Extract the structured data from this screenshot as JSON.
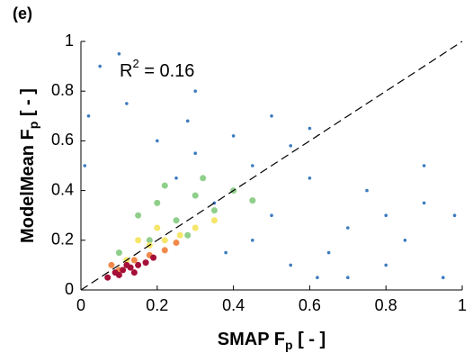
{
  "chart_data": {
    "type": "scatter",
    "panel_label": "(e)",
    "annotation": {
      "base": "R",
      "sup": "2",
      "rest": " = 0.16"
    },
    "x_label": {
      "base": "SMAP F",
      "sub": "p",
      "rest": " [ - ]"
    },
    "y_label": {
      "base": "ModelMean F",
      "sub": "p",
      "rest": " [ - ]"
    },
    "xlim": [
      0,
      1
    ],
    "ylim": [
      0,
      1
    ],
    "xticks": [
      0,
      0.2,
      0.4,
      0.6,
      0.8,
      1
    ],
    "yticks": [
      0,
      0.2,
      0.4,
      0.6,
      0.8,
      1
    ],
    "series": [
      {
        "color": "#3b7bbf",
        "x": [
          0.05,
          0.12,
          0.2,
          0.3,
          0.45,
          0.6,
          0.75,
          0.9,
          0.98,
          0.15,
          0.35,
          0.5,
          0.7,
          0.85,
          0.25,
          0.4,
          0.55,
          0.65,
          0.8,
          0.95,
          0.1,
          0.3,
          0.5,
          0.02,
          0.01,
          0.6,
          0.45,
          0.2,
          0.7,
          0.9,
          0.38,
          0.55,
          0.28,
          0.8,
          0.62
        ],
        "values": [
          0.9,
          0.75,
          0.6,
          0.55,
          0.5,
          0.45,
          0.4,
          0.35,
          0.3,
          0.3,
          0.35,
          0.3,
          0.25,
          0.2,
          0.45,
          0.62,
          0.58,
          0.15,
          0.1,
          0.05,
          0.95,
          0.8,
          0.7,
          0.7,
          0.5,
          0.65,
          0.2,
          0.25,
          0.05,
          0.5,
          0.15,
          0.1,
          0.68,
          0.3,
          0.05
        ]
      },
      {
        "color": "#8fcf8a",
        "x": [
          0.15,
          0.2,
          0.25,
          0.3,
          0.35,
          0.4,
          0.28,
          0.18,
          0.1,
          0.22,
          0.32,
          0.45
        ],
        "values": [
          0.3,
          0.35,
          0.28,
          0.38,
          0.32,
          0.4,
          0.22,
          0.2,
          0.15,
          0.42,
          0.45,
          0.36
        ]
      },
      {
        "color": "#f5e66a",
        "x": [
          0.12,
          0.18,
          0.22,
          0.26,
          0.3,
          0.15,
          0.2,
          0.35
        ],
        "values": [
          0.12,
          0.18,
          0.2,
          0.22,
          0.25,
          0.2,
          0.25,
          0.28
        ]
      },
      {
        "color": "#f08a4b",
        "x": [
          0.1,
          0.14,
          0.18,
          0.22,
          0.08,
          0.25
        ],
        "values": [
          0.08,
          0.12,
          0.14,
          0.16,
          0.1,
          0.19
        ]
      },
      {
        "color": "#a50f38",
        "x": [
          0.07,
          0.09,
          0.11,
          0.13,
          0.15,
          0.17,
          0.1,
          0.12,
          0.14,
          0.19
        ],
        "values": [
          0.05,
          0.07,
          0.08,
          0.09,
          0.1,
          0.11,
          0.06,
          0.1,
          0.07,
          0.13
        ]
      }
    ]
  }
}
